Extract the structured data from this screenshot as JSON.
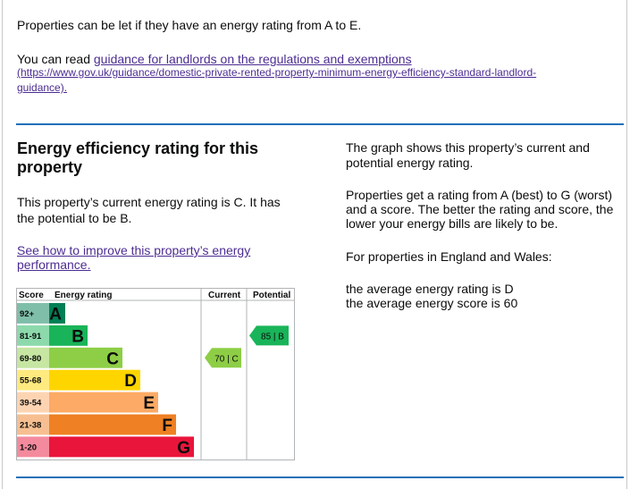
{
  "intro": {
    "letting_text": "Properties can be let if they have an energy rating from A to E.",
    "guidance_prefix": "You can read ",
    "guidance_link": "guidance for landlords on the regulations and exemptions",
    "guidance_url": "(https://www.gov.uk/guidance/domestic-private-rented-property-minimum-energy-efficiency-standard-landlord-guidance).",
    "guidance_url_line1": "(https://www.gov.uk/guidance/domestic-private-rented-property-minimum-energy-efficiency-standard-landlord-",
    "guidance_url_line2": "guidance)."
  },
  "section": {
    "heading_line1": "Energy efficiency rating for this",
    "heading_line2": "property",
    "current_text_line1": "This property’s current energy rating is C. It has",
    "current_text_line2": "the potential to be B.",
    "improve_link_line1": "See how to improve this property’s energy",
    "improve_link_line2": "performance."
  },
  "side": {
    "graph_line1": "The graph shows this property’s current and",
    "graph_line2": "potential energy rating.",
    "ratings_line1": "Properties get a rating from A (best) to G (worst)",
    "ratings_line2": "and a score. The better the rating and score, the",
    "ratings_line3": "lower your energy bills are likely to be.",
    "england_wales": "For properties in England and Wales:",
    "avg_rating": "the average energy rating is D",
    "avg_score": "the average energy score is 60"
  },
  "chart_data": {
    "type": "table",
    "columns": [
      "Score",
      "Energy rating",
      "Current",
      "Potential"
    ],
    "bands": [
      {
        "score": "92+",
        "letter": "A",
        "color": "#008054"
      },
      {
        "score": "81-91",
        "letter": "B",
        "color": "#19b459"
      },
      {
        "score": "69-80",
        "letter": "C",
        "color": "#8dce46"
      },
      {
        "score": "55-68",
        "letter": "D",
        "color": "#ffd500"
      },
      {
        "score": "39-54",
        "letter": "E",
        "color": "#fcaa65"
      },
      {
        "score": "21-38",
        "letter": "F",
        "color": "#ef8023"
      },
      {
        "score": "1-20",
        "letter": "G",
        "color": "#e9153b"
      }
    ],
    "current": {
      "score": 70,
      "letter": "C",
      "label": "70 | C"
    },
    "potential": {
      "score": 85,
      "letter": "B",
      "label": "85 | B"
    }
  }
}
